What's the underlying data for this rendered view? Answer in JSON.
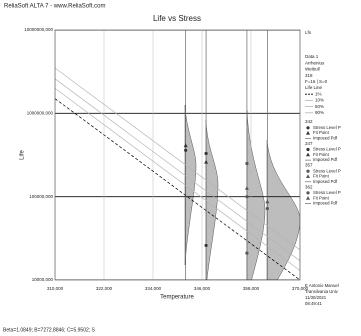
{
  "header": "ReliaSoft ALTA 7 - www.ReliaSoft.com",
  "status_bar": "Beta=1.0849; B=7272.8846; C=5.9502; S",
  "chart_data": {
    "type": "scatter",
    "title": "Life vs Stress",
    "xlabel": "Temperature",
    "ylabel": "Life",
    "xlim": [
      310,
      370
    ],
    "xticks": [
      {
        "value": 310,
        "label": "310,000"
      },
      {
        "value": 322,
        "label": "322,000"
      },
      {
        "value": 334,
        "label": "334,000"
      },
      {
        "value": 346,
        "label": "346,000"
      },
      {
        "value": 358,
        "label": "358,000"
      },
      {
        "value": 370,
        "label": "370,000"
      }
    ],
    "ylim": [
      10000,
      10000000
    ],
    "yscale": "log",
    "yticks": [
      {
        "value": 10000,
        "label": "10000,000"
      },
      {
        "value": 100000,
        "label": "100000,000"
      },
      {
        "value": 1000000,
        "label": "1000000,000"
      },
      {
        "value": 10000000,
        "label": "10000000,000"
      }
    ],
    "grid": true,
    "legend_info": [
      "Lfs",
      "Data 1",
      "Arrhenius",
      "Weibull",
      "318",
      "F=16 | S=0",
      "Life Line"
    ],
    "lines": [
      {
        "name": "1%",
        "color": "#000000",
        "dash": true,
        "x": [
          310,
          370
        ],
        "values": [
          1500000,
          10000
        ]
      },
      {
        "name": "10%",
        "color": "#b4b4b4",
        "dash": false,
        "x": [
          310,
          370
        ],
        "values": [
          2000000,
          13000
        ]
      },
      {
        "name": "50%",
        "color": "#b4b4b4",
        "dash": false,
        "x": [
          310,
          370
        ],
        "values": [
          2600000,
          17000
        ]
      },
      {
        "name": "90%",
        "color": "#b4b4b4",
        "dash": false,
        "x": [
          310,
          370
        ],
        "values": [
          3500000,
          23000
        ]
      }
    ],
    "series": [
      {
        "name": "342",
        "color": "#333333",
        "x": [
          342,
          342
        ],
        "values": [
          410000,
          360000
        ],
        "markers": [
          "triangle",
          "circle"
        ]
      },
      {
        "name": "347",
        "color": "#333333",
        "x": [
          347,
          347,
          347
        ],
        "values": [
          330000,
          260000,
          26000
        ],
        "markers": [
          "circle",
          "triangle",
          "circle"
        ]
      },
      {
        "name": "357",
        "color": "#555555",
        "x": [
          357,
          357,
          357,
          357
        ],
        "values": [
          250000,
          126000,
          100000,
          21000
        ],
        "markers": [
          "circle",
          "triangle",
          "circle",
          "circle"
        ]
      },
      {
        "name": "362",
        "color": "#555555",
        "x": [
          362,
          362
        ],
        "values": [
          87000,
          72000
        ],
        "markers": [
          "triangle",
          "circle"
        ]
      }
    ],
    "series_legend": [
      "Stress Level P",
      "Fit Point",
      "Imposed Pdf"
    ],
    "signature": [
      "E Antonio Manuel",
      "Transilvania Univ",
      "11/30/2021",
      "08:49:41"
    ]
  }
}
